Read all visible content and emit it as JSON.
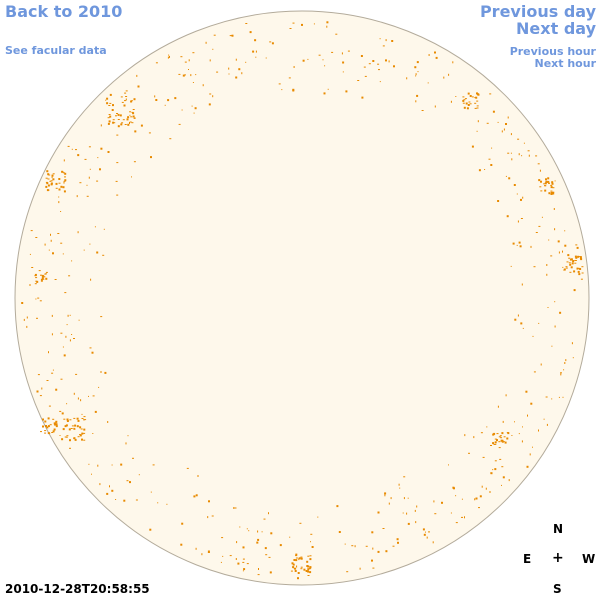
{
  "nav": {
    "back": "Back to 2010",
    "facular": "See facular data",
    "previous_day": "Previous day",
    "next_day": "Next day",
    "previous_hour": "Previous hour",
    "next_hour": "Next hour"
  },
  "compass": {
    "north": "N",
    "east": "E",
    "center": "+",
    "west": "W",
    "south": "S"
  },
  "timestamp": "2010-12-28T20:58:55",
  "colors": {
    "disk_fill": "#fef8eb",
    "disk_outline": "#b3ab9b",
    "faculae": "#e88a00",
    "link": "#6f97dd"
  }
}
